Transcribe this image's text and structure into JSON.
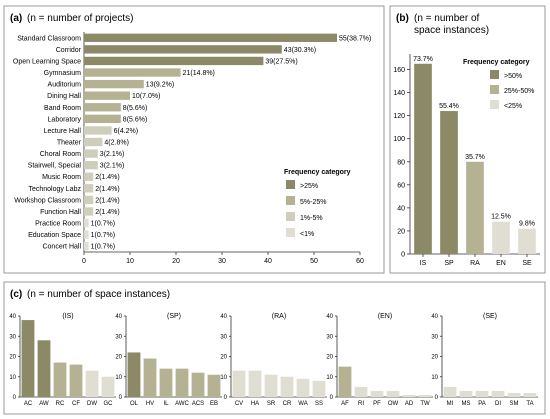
{
  "colors": {
    "high": "#8c8a66",
    "mid": "#b4b293",
    "low": "#cfcdbb",
    "lowest": "#e0ded3",
    "panelBorder": "#9a9a9a",
    "axis": "#333333"
  },
  "panel_a": {
    "label": "(a)",
    "caption": "(n = number of projects)",
    "legend_title": "Frequency category",
    "legend": [
      ">25%",
      "5%-25%",
      "1%-5%",
      "<1%"
    ]
  },
  "panel_b": {
    "label": "(b)",
    "caption_line1": "(n = number of",
    "caption_line2": "space instances)",
    "legend_title": "Frequency category",
    "legend": [
      ">50%",
      "25%-50%",
      "<25%"
    ]
  },
  "panel_c": {
    "label": "(c)",
    "caption": "(n = number of space instances)"
  },
  "chart_data": [
    {
      "id": "a",
      "type": "bar",
      "orientation": "horizontal",
      "categories": [
        "Standard Classroom",
        "Corridor",
        "Open Learning Space",
        "Gymnasium",
        "Auditorium",
        "Dining Hall",
        "Band Room",
        "Laboratory",
        "Lecture Hall",
        "Theater",
        "Choral Room",
        "Stairwell, Special",
        "Music Room",
        "Technology Labz",
        "Workshop Classroom",
        "Function Hall",
        "Practice Room",
        "Education Space",
        "Concert Hall"
      ],
      "values": [
        55,
        43,
        39,
        21,
        13,
        10,
        8,
        8,
        6,
        4,
        3,
        3,
        2,
        2,
        2,
        2,
        1,
        1,
        1
      ],
      "data_labels": [
        "55(38.7%)",
        "43(30.3%)",
        "39(27.5%)",
        "21(14.8%)",
        "13(9.2%)",
        "10(7.0%)",
        "8(5.6%)",
        "8(5.6%)",
        "6(4.2%)",
        "4(2.8%)",
        "3(2.1%)",
        "3(2.1%)",
        "2(1.4%)",
        "2(1.4%)",
        "2(1.4%)",
        "2(1.4%)",
        "1(0.7%)",
        "1(0.7%)",
        "1(0.7%)"
      ],
      "frequency_category": [
        ">25%",
        ">25%",
        ">25%",
        "5%-25%",
        "5%-25%",
        "5%-25%",
        "5%-25%",
        "5%-25%",
        "1%-5%",
        "1%-5%",
        "1%-5%",
        "1%-5%",
        "1%-5%",
        "1%-5%",
        "1%-5%",
        "1%-5%",
        "<1%",
        "<1%",
        "<1%"
      ],
      "xlim": [
        0,
        60
      ],
      "xticks": [
        0,
        10,
        20,
        30,
        40,
        50,
        60
      ],
      "legend_position": "bottom-right"
    },
    {
      "id": "b",
      "type": "bar",
      "categories": [
        "IS",
        "SP",
        "RA",
        "EN",
        "SE"
      ],
      "values": [
        165,
        124,
        80,
        28,
        22
      ],
      "data_labels": [
        "73.7%",
        "55.4%",
        "35.7%",
        "12.5%",
        "9.8%"
      ],
      "frequency_category": [
        ">50%",
        ">50%",
        "25%-50%",
        "<25%",
        "<25%"
      ],
      "ylim": [
        0,
        170
      ],
      "yticks": [
        0,
        20,
        40,
        60,
        80,
        100,
        120,
        140,
        160
      ],
      "legend_position": "top-right"
    },
    {
      "id": "c",
      "type": "bar",
      "ylim": [
        0,
        40
      ],
      "yticks": [
        0,
        10,
        20,
        30,
        40
      ],
      "groups": [
        {
          "title": "(IS)",
          "categories": [
            "AC",
            "AW",
            "RC",
            "CF",
            "DW",
            "GC"
          ],
          "values": [
            38,
            28,
            17,
            16,
            13,
            10
          ],
          "frequency_category": [
            ">50%",
            ">50%",
            "25%-50%",
            "25%-50%",
            "<25%",
            "<25%"
          ]
        },
        {
          "title": "(SP)",
          "categories": [
            "OL",
            "HV",
            "IL",
            "AWC",
            "ACS",
            "EB"
          ],
          "values": [
            22,
            19,
            14,
            14,
            12,
            11
          ],
          "frequency_category": [
            ">50%",
            "25%-50%",
            "25%-50%",
            "25%-50%",
            "25%-50%",
            "25%-50%"
          ]
        },
        {
          "title": "(RA)",
          "categories": [
            "CV",
            "HA",
            "SR",
            "CR",
            "WA",
            "SS"
          ],
          "values": [
            13,
            13,
            11,
            10,
            9,
            8
          ],
          "frequency_category": [
            "<25%",
            "<25%",
            "<25%",
            "<25%",
            "<25%",
            "<25%"
          ]
        },
        {
          "title": "(EN)",
          "categories": [
            "AF",
            "RI",
            "PF",
            "OW",
            "AD",
            "TW"
          ],
          "values": [
            15,
            5,
            3,
            3,
            1,
            1
          ],
          "frequency_category": [
            "25%-50%",
            "<25%",
            "<25%",
            "<25%",
            "<25%",
            "<25%"
          ]
        },
        {
          "title": "(SE)",
          "categories": [
            "MI",
            "MS",
            "PA",
            "DI",
            "SM",
            "TA"
          ],
          "values": [
            5,
            3,
            3,
            3,
            2,
            2
          ],
          "frequency_category": [
            "<25%",
            "<25%",
            "<25%",
            "<25%",
            "<25%",
            "<25%"
          ]
        }
      ]
    }
  ]
}
